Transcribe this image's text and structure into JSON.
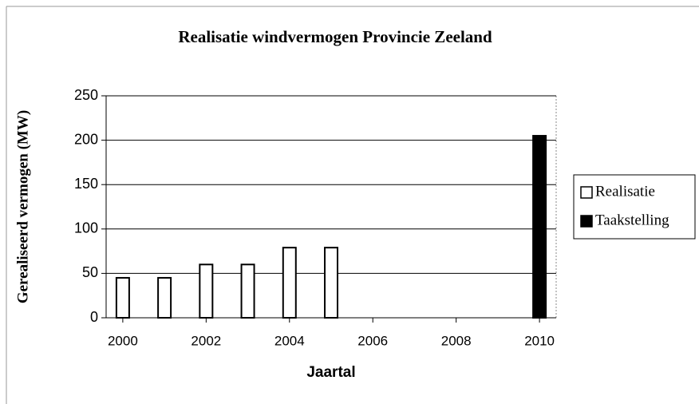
{
  "chart_data": {
    "type": "bar",
    "title": "Realisatie windvermogen Provincie Zeeland",
    "xlabel": "Jaartal",
    "ylabel": "Gerealiseerd vermogen (MW)",
    "x": [
      2000,
      2001,
      2002,
      2003,
      2004,
      2005,
      2006,
      2007,
      2008,
      2009,
      2010
    ],
    "series": [
      {
        "name": "Realisatie",
        "color": "#ffffff",
        "edgecolor": "#000000",
        "values": [
          45,
          45,
          60,
          60,
          79,
          79,
          null,
          null,
          null,
          null,
          null
        ]
      },
      {
        "name": "Taakstelling",
        "color": "#000000",
        "edgecolor": "#000000",
        "values": [
          null,
          null,
          null,
          null,
          null,
          null,
          null,
          null,
          null,
          null,
          205
        ]
      }
    ],
    "xlim": [
      1999.6,
      2010.4
    ],
    "xticks": [
      2000,
      2002,
      2004,
      2006,
      2008,
      2010
    ],
    "ylim": [
      0,
      250
    ],
    "yticks": [
      0,
      50,
      100,
      150,
      200,
      250
    ],
    "grid": true,
    "legend": "right"
  }
}
